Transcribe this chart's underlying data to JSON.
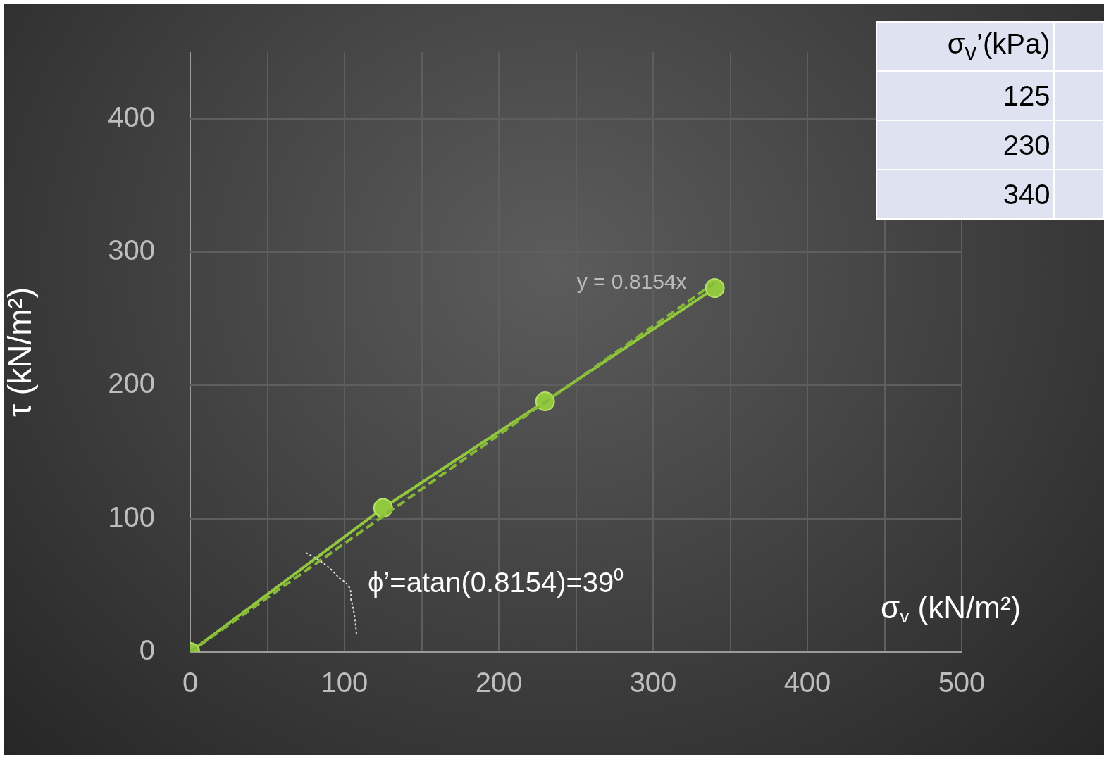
{
  "chart_data": {
    "type": "line",
    "xlabel": "σ$_{v}$ (kN/m²)",
    "ylabel": "τ (kN/m²)",
    "xlim": [
      0,
      500
    ],
    "xticks": [
      0,
      {
        "value": 50,
        "label": null
      },
      100,
      {
        "value": 150,
        "label": null
      },
      200,
      {
        "value": 250,
        "label": null
      },
      300,
      {
        "value": 350,
        "label": null
      },
      400,
      {
        "value": 450,
        "label": null
      },
      500
    ],
    "ylim": [
      0,
      450
    ],
    "yticks": [
      0,
      100,
      200,
      300,
      400
    ],
    "grid": true,
    "legend": false,
    "marker": "circle",
    "series": [
      {
        "color": "#92c83e",
        "x": [
          0,
          125,
          230,
          340
        ],
        "values": [
          0,
          108,
          188,
          273
        ],
        "line_style": "solid"
      },
      {
        "name": "y = 0.8154x",
        "color": "#86b83a",
        "x": [
          0,
          340
        ],
        "values": [
          0,
          277
        ],
        "marker": "none",
        "line_style": "dashed"
      }
    ],
    "annotations": [
      "ϕ’=atan(0.8154)=39⁰",
      "σ$_{v}$’(kPa)",
      "125",
      "230",
      "340"
    ]
  }
}
